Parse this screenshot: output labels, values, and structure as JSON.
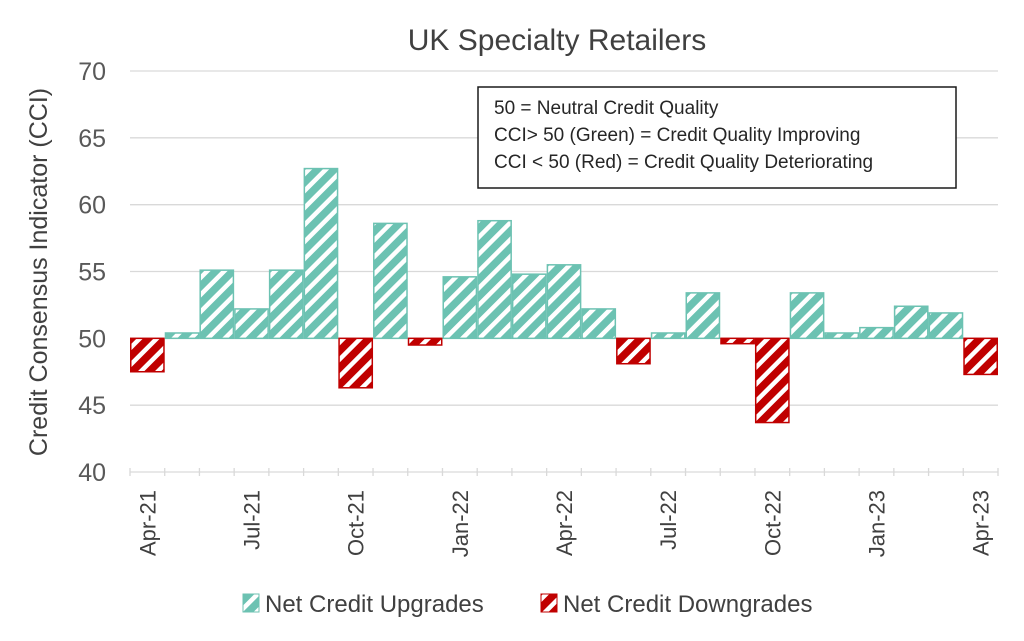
{
  "chart_data": {
    "type": "bar",
    "title": "UK Specialty Retailers",
    "xlabel": "",
    "ylabel": "Credit Consensus Indicator (CCI)",
    "ylim": [
      40,
      70
    ],
    "yticks": [
      40,
      45,
      50,
      55,
      60,
      65,
      70
    ],
    "baseline": 50,
    "categories": [
      "Apr-21",
      "May-21",
      "Jun-21",
      "Jul-21",
      "Aug-21",
      "Sep-21",
      "Oct-21",
      "Nov-21",
      "Dec-21",
      "Jan-22",
      "Feb-22",
      "Mar-22",
      "Apr-22",
      "May-22",
      "Jun-22",
      "Jul-22",
      "Aug-22",
      "Sep-22",
      "Oct-22",
      "Nov-22",
      "Dec-22",
      "Jan-23",
      "Feb-23",
      "Mar-23",
      "Apr-23"
    ],
    "xtick_labels": [
      "Apr-21",
      "Jul-21",
      "Oct-21",
      "Jan-22",
      "Apr-22",
      "Jul-22",
      "Oct-22",
      "Jan-23",
      "Apr-23"
    ],
    "values": [
      47.5,
      50.4,
      55.1,
      52.2,
      55.1,
      62.7,
      46.3,
      58.6,
      49.5,
      54.6,
      58.8,
      54.8,
      55.5,
      52.2,
      48.1,
      50.4,
      53.4,
      49.6,
      43.7,
      53.4,
      50.4,
      50.8,
      52.4,
      51.9,
      47.3
    ],
    "series": [
      {
        "name": "Net Credit Upgrades",
        "color": "#6cc2b2",
        "rule": "value > 50"
      },
      {
        "name": "Net Credit Downgrades",
        "color": "#c00000",
        "rule": "value < 50"
      }
    ],
    "legend_position": "bottom",
    "grid": true,
    "annotation_lines": [
      "50 = Neutral Credit Quality",
      "CCI> 50 (Green) = Credit Quality Improving",
      "CCI < 50 (Red) = Credit Quality Deteriorating"
    ]
  }
}
